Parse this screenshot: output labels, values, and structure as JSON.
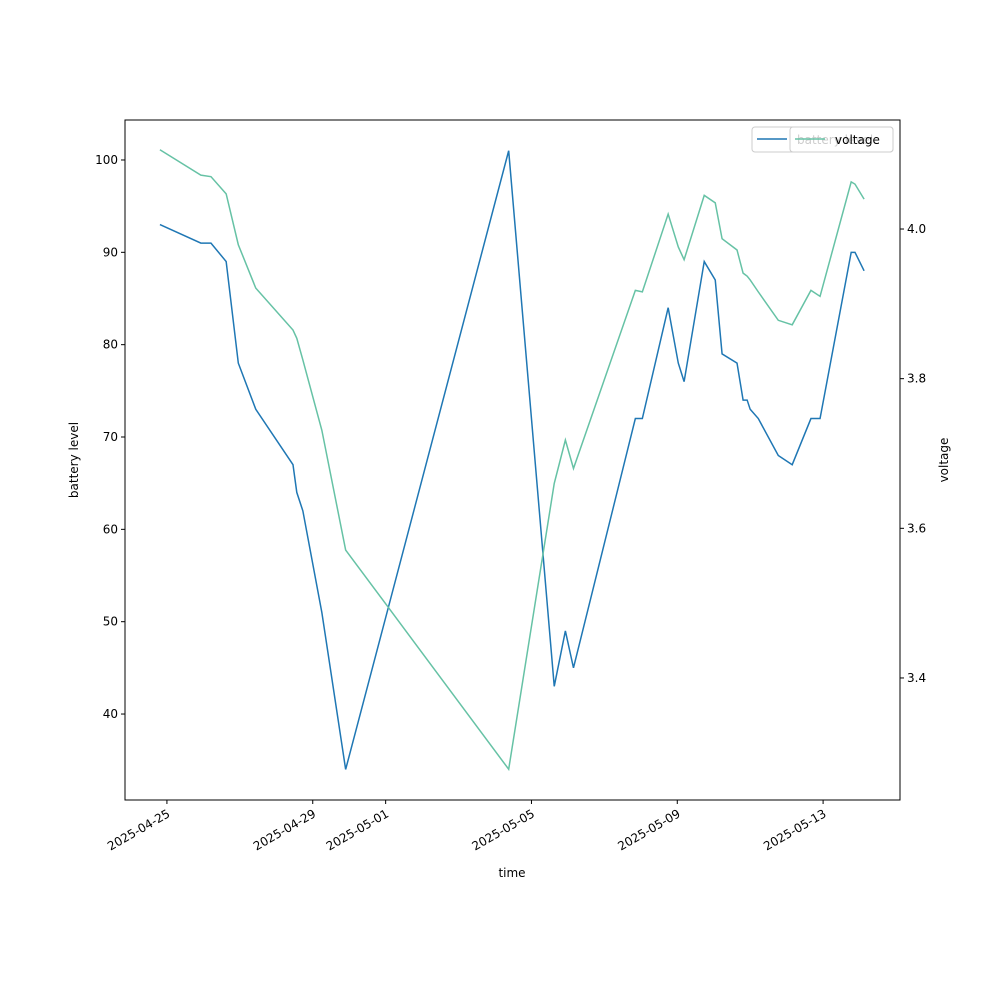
{
  "chart_data": {
    "type": "line",
    "xlabel": "time",
    "ylabel": "battery level",
    "y2label": "voltage",
    "x": [
      "2025-04-24T19:24",
      "2025-04-25T22:20",
      "2025-04-26T05:00",
      "2025-04-26T15:00",
      "2025-04-26T23:00",
      "2025-04-27T10:30",
      "2025-04-28T11:00",
      "2025-04-28T13:30",
      "2025-04-28T17:30",
      "2025-04-29T06:00",
      "2025-04-29T21:40",
      "2025-05-04T09:00",
      "2025-05-05T15:00",
      "2025-05-05T22:20",
      "2025-05-06T03:40",
      "2025-05-07T20:24",
      "2025-05-08T01:00",
      "2025-05-08T18:00",
      "2025-05-09T00:40",
      "2025-05-09T04:30",
      "2025-05-09T17:45",
      "2025-05-10T01:00",
      "2025-05-10T05:30",
      "2025-05-10T15:20",
      "2025-05-10T19:20",
      "2025-05-10T22:00",
      "2025-05-11T00:00",
      "2025-05-11T05:20",
      "2025-05-11T18:30",
      "2025-05-12T03:40",
      "2025-05-12T16:00",
      "2025-05-12T22:00",
      "2025-05-13T18:30",
      "2025-05-13T21:00",
      "2025-05-14T03:00"
    ],
    "series": [
      {
        "name": "battery level",
        "color": "#1f77b4",
        "values": [
          93,
          91,
          91,
          89,
          78,
          73,
          67,
          64,
          62,
          51,
          34,
          101,
          43,
          49,
          45,
          72,
          72,
          84,
          78,
          76,
          89,
          87,
          79,
          78,
          74,
          74,
          73,
          72,
          68,
          67,
          72,
          72,
          90,
          90,
          88
        ]
      },
      {
        "name": "voltage",
        "color": "#66c2a5",
        "axis": "y2",
        "values": [
          4.106,
          4.072,
          4.07,
          4.047,
          3.979,
          3.921,
          3.865,
          3.854,
          3.825,
          3.731,
          3.571,
          3.278,
          3.66,
          3.718,
          3.68,
          3.918,
          3.916,
          4.02,
          3.976,
          3.959,
          4.045,
          4.035,
          3.987,
          3.972,
          3.941,
          3.937,
          3.932,
          3.916,
          3.878,
          3.872,
          3.918,
          3.91,
          4.063,
          4.06,
          4.04
        ]
      }
    ],
    "xlim": [
      "2025-04-23T20:24",
      "2025-05-15T02:38"
    ],
    "xticks": [
      "2025-04-25",
      "2025-04-29",
      "2025-05-01",
      "2025-05-05",
      "2025-05-09",
      "2025-05-13"
    ],
    "ylim": [
      30.69,
      104.33
    ],
    "yticks": [
      40,
      50,
      60,
      70,
      80,
      90,
      100
    ],
    "y2lim": [
      3.2369,
      4.1457
    ],
    "y2ticks": [
      3.4,
      3.6,
      3.8,
      {
        "value": 4,
        "label": "4.0"
      }
    ],
    "legend": "upper right"
  }
}
